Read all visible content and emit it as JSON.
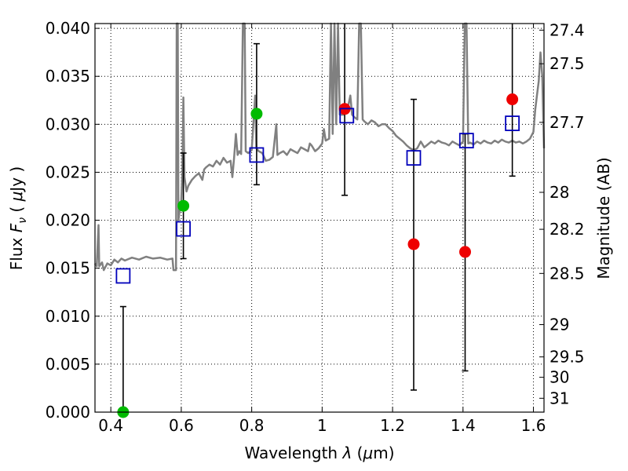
{
  "chart_data": {
    "type": "scatter",
    "xlabel_prefix": "Wavelength  ",
    "xlabel_symbol": "λ",
    "xlabel_unit_open": " (",
    "xlabel_unit_mu": "μ",
    "xlabel_unit_close": "m)",
    "ylabel_prefix": "Flux  ",
    "ylabel_symbol": "F",
    "ylabel_sub": "ν",
    "ylabel_unit_open": "  ( ",
    "ylabel_unit_mu": "μ",
    "ylabel_unit_close": "Jy )",
    "y2label": "Magnitude (AB)",
    "xlim": [
      0.355,
      1.63
    ],
    "ylim": [
      0.0,
      0.0405
    ],
    "grid": true,
    "x_ticks": [
      {
        "value": 0.4,
        "label": "0.4"
      },
      {
        "value": 0.6,
        "label": "0.6"
      },
      {
        "value": 0.8,
        "label": "0.8"
      },
      {
        "value": 1.0,
        "label": "1"
      },
      {
        "value": 1.2,
        "label": "1.2"
      },
      {
        "value": 1.4,
        "label": "1.4"
      },
      {
        "value": 1.6,
        "label": "1.6"
      }
    ],
    "y_ticks": [
      {
        "value": 0.0,
        "label": "0.000"
      },
      {
        "value": 0.005,
        "label": "0.005"
      },
      {
        "value": 0.01,
        "label": "0.010"
      },
      {
        "value": 0.015,
        "label": "0.015"
      },
      {
        "value": 0.02,
        "label": "0.020"
      },
      {
        "value": 0.025,
        "label": "0.025"
      },
      {
        "value": 0.03,
        "label": "0.030"
      },
      {
        "value": 0.035,
        "label": "0.035"
      },
      {
        "value": 0.04,
        "label": "0.040"
      }
    ],
    "y2_ticks": [
      {
        "mag": 27.4,
        "label": "27.4"
      },
      {
        "mag": 27.5,
        "label": "27.5"
      },
      {
        "mag": 27.7,
        "label": "27.7"
      },
      {
        "mag": 28.0,
        "label": "28"
      },
      {
        "mag": 28.2,
        "label": "28.2"
      },
      {
        "mag": 28.5,
        "label": "28.5"
      },
      {
        "mag": 29.0,
        "label": "29"
      },
      {
        "mag": 29.5,
        "label": "29.5"
      },
      {
        "mag": 30.0,
        "label": "30"
      },
      {
        "mag": 31.0,
        "label": "31"
      }
    ],
    "colors": {
      "template": "#808080",
      "green": "#00bb00",
      "red": "#ee0000",
      "model_box": "#0000bb",
      "errorbar": "#000000"
    },
    "error_bars": [
      {
        "x": 0.435,
        "low": 0.0,
        "high": 0.011
      },
      {
        "x": 0.606,
        "low": 0.016,
        "high": 0.027
      },
      {
        "x": 0.814,
        "low": 0.0237,
        "high": 0.0384
      },
      {
        "x": 1.064,
        "low": 0.0226,
        "high": 0.0405
      },
      {
        "x": 1.26,
        "low": 0.0023,
        "high": 0.0326
      },
      {
        "x": 1.406,
        "low": 0.0043,
        "high": 0.029
      },
      {
        "x": 1.54,
        "low": 0.0246,
        "high": 0.0405
      }
    ],
    "green_points": [
      {
        "x": 0.435,
        "y": 0.0
      },
      {
        "x": 0.606,
        "y": 0.0215
      },
      {
        "x": 0.814,
        "y": 0.0311
      }
    ],
    "red_points": [
      {
        "x": 1.064,
        "y": 0.0316
      },
      {
        "x": 1.26,
        "y": 0.0175
      },
      {
        "x": 1.406,
        "y": 0.0167
      },
      {
        "x": 1.54,
        "y": 0.0326
      }
    ],
    "model_points": [
      {
        "x": 0.435,
        "y": 0.0142
      },
      {
        "x": 0.606,
        "y": 0.0191
      },
      {
        "x": 0.814,
        "y": 0.0268
      },
      {
        "x": 1.07,
        "y": 0.0309
      },
      {
        "x": 1.26,
        "y": 0.0265
      },
      {
        "x": 1.41,
        "y": 0.0283
      },
      {
        "x": 1.54,
        "y": 0.0301
      }
    ],
    "template_spectrum": [
      [
        0.355,
        0.0155
      ],
      [
        0.36,
        0.0152
      ],
      [
        0.365,
        0.0195
      ],
      [
        0.367,
        0.0152
      ],
      [
        0.375,
        0.0156
      ],
      [
        0.38,
        0.0148
      ],
      [
        0.39,
        0.0155
      ],
      [
        0.4,
        0.0153
      ],
      [
        0.41,
        0.0159
      ],
      [
        0.42,
        0.0156
      ],
      [
        0.43,
        0.016
      ],
      [
        0.44,
        0.0158
      ],
      [
        0.46,
        0.0161
      ],
      [
        0.48,
        0.0159
      ],
      [
        0.5,
        0.0162
      ],
      [
        0.52,
        0.016
      ],
      [
        0.54,
        0.0161
      ],
      [
        0.56,
        0.0159
      ],
      [
        0.575,
        0.016
      ],
      [
        0.578,
        0.0148
      ],
      [
        0.585,
        0.0148
      ],
      [
        0.587,
        0.0405
      ],
      [
        0.59,
        0.0405
      ],
      [
        0.592,
        0.02
      ],
      [
        0.597,
        0.0215
      ],
      [
        0.6,
        0.022
      ],
      [
        0.603,
        0.025
      ],
      [
        0.606,
        0.0328
      ],
      [
        0.609,
        0.0245
      ],
      [
        0.615,
        0.023
      ],
      [
        0.62,
        0.0236
      ],
      [
        0.63,
        0.0242
      ],
      [
        0.64,
        0.0246
      ],
      [
        0.65,
        0.0249
      ],
      [
        0.66,
        0.0242
      ],
      [
        0.665,
        0.0253
      ],
      [
        0.67,
        0.0255
      ],
      [
        0.68,
        0.0258
      ],
      [
        0.69,
        0.0256
      ],
      [
        0.7,
        0.0262
      ],
      [
        0.71,
        0.0258
      ],
      [
        0.72,
        0.0265
      ],
      [
        0.73,
        0.026
      ],
      [
        0.74,
        0.0262
      ],
      [
        0.745,
        0.0245
      ],
      [
        0.75,
        0.0265
      ],
      [
        0.755,
        0.029
      ],
      [
        0.76,
        0.0268
      ],
      [
        0.765,
        0.0272
      ],
      [
        0.77,
        0.0269
      ],
      [
        0.775,
        0.0405
      ],
      [
        0.78,
        0.0405
      ],
      [
        0.783,
        0.0272
      ],
      [
        0.79,
        0.027
      ],
      [
        0.8,
        0.0273
      ],
      [
        0.81,
        0.033
      ],
      [
        0.813,
        0.0275
      ],
      [
        0.82,
        0.0272
      ],
      [
        0.83,
        0.027
      ],
      [
        0.84,
        0.0262
      ],
      [
        0.85,
        0.0263
      ],
      [
        0.86,
        0.0266
      ],
      [
        0.87,
        0.03
      ],
      [
        0.873,
        0.0268
      ],
      [
        0.88,
        0.027
      ],
      [
        0.89,
        0.0272
      ],
      [
        0.9,
        0.0268
      ],
      [
        0.91,
        0.0274
      ],
      [
        0.92,
        0.0272
      ],
      [
        0.93,
        0.027
      ],
      [
        0.94,
        0.0276
      ],
      [
        0.95,
        0.0274
      ],
      [
        0.96,
        0.0272
      ],
      [
        0.965,
        0.028
      ],
      [
        0.97,
        0.0278
      ],
      [
        0.98,
        0.0272
      ],
      [
        0.99,
        0.0275
      ],
      [
        1.0,
        0.028
      ],
      [
        1.005,
        0.0295
      ],
      [
        1.01,
        0.0283
      ],
      [
        1.02,
        0.0285
      ],
      [
        1.025,
        0.0405
      ],
      [
        1.03,
        0.029
      ],
      [
        1.035,
        0.0405
      ],
      [
        1.04,
        0.03
      ],
      [
        1.045,
        0.0405
      ],
      [
        1.05,
        0.031
      ],
      [
        1.06,
        0.031
      ],
      [
        1.07,
        0.0312
      ],
      [
        1.08,
        0.033
      ],
      [
        1.085,
        0.031
      ],
      [
        1.09,
        0.0308
      ],
      [
        1.1,
        0.0305
      ],
      [
        1.105,
        0.0405
      ],
      [
        1.11,
        0.0405
      ],
      [
        1.115,
        0.0305
      ],
      [
        1.12,
        0.0303
      ],
      [
        1.13,
        0.03
      ],
      [
        1.14,
        0.0304
      ],
      [
        1.15,
        0.0302
      ],
      [
        1.16,
        0.0298
      ],
      [
        1.17,
        0.03
      ],
      [
        1.18,
        0.03
      ],
      [
        1.19,
        0.0296
      ],
      [
        1.2,
        0.0293
      ],
      [
        1.21,
        0.0288
      ],
      [
        1.22,
        0.0285
      ],
      [
        1.23,
        0.0282
      ],
      [
        1.24,
        0.0278
      ],
      [
        1.25,
        0.0275
      ],
      [
        1.26,
        0.0273
      ],
      [
        1.27,
        0.0275
      ],
      [
        1.28,
        0.0282
      ],
      [
        1.29,
        0.0276
      ],
      [
        1.3,
        0.0279
      ],
      [
        1.31,
        0.0282
      ],
      [
        1.32,
        0.028
      ],
      [
        1.33,
        0.0283
      ],
      [
        1.34,
        0.0281
      ],
      [
        1.35,
        0.028
      ],
      [
        1.36,
        0.0278
      ],
      [
        1.37,
        0.0282
      ],
      [
        1.38,
        0.028
      ],
      [
        1.39,
        0.0278
      ],
      [
        1.4,
        0.0282
      ],
      [
        1.405,
        0.0405
      ],
      [
        1.41,
        0.0405
      ],
      [
        1.415,
        0.028
      ],
      [
        1.42,
        0.0281
      ],
      [
        1.43,
        0.0279
      ],
      [
        1.44,
        0.0282
      ],
      [
        1.45,
        0.028
      ],
      [
        1.46,
        0.0283
      ],
      [
        1.47,
        0.0281
      ],
      [
        1.48,
        0.028
      ],
      [
        1.49,
        0.0283
      ],
      [
        1.5,
        0.0281
      ],
      [
        1.51,
        0.0284
      ],
      [
        1.52,
        0.0282
      ],
      [
        1.53,
        0.0281
      ],
      [
        1.54,
        0.0283
      ],
      [
        1.55,
        0.0281
      ],
      [
        1.56,
        0.0282
      ],
      [
        1.57,
        0.028
      ],
      [
        1.58,
        0.0282
      ],
      [
        1.59,
        0.0285
      ],
      [
        1.6,
        0.0292
      ],
      [
        1.605,
        0.0315
      ],
      [
        1.61,
        0.033
      ],
      [
        1.615,
        0.0345
      ],
      [
        1.62,
        0.0375
      ],
      [
        1.625,
        0.035
      ],
      [
        1.63,
        0.0275
      ]
    ]
  }
}
